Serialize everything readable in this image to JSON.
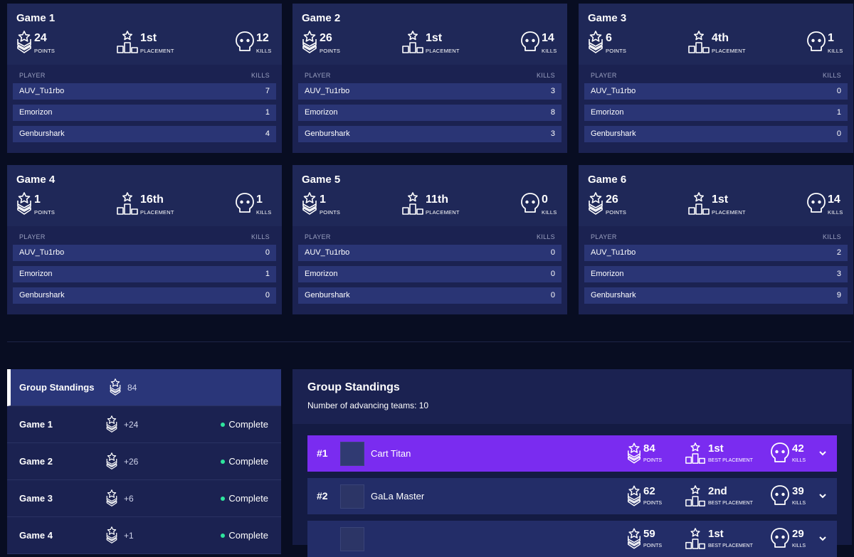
{
  "labels": {
    "points": "POINTS",
    "placement": "PLACEMENT",
    "kills": "KILLS",
    "player_col": "PLAYER",
    "kills_col": "KILLS",
    "best_placement": "BEST PLACEMENT"
  },
  "games": [
    {
      "title": "Game 1",
      "points": "24",
      "placement": "1st",
      "kills": "12",
      "players": [
        {
          "name": "AUV_Tu1rbo",
          "kills": "7"
        },
        {
          "name": "Emorizon",
          "kills": "1"
        },
        {
          "name": "Genburshark",
          "kills": "4"
        }
      ]
    },
    {
      "title": "Game 2",
      "points": "26",
      "placement": "1st",
      "kills": "14",
      "players": [
        {
          "name": "AUV_Tu1rbo",
          "kills": "3"
        },
        {
          "name": "Emorizon",
          "kills": "8"
        },
        {
          "name": "Genburshark",
          "kills": "3"
        }
      ]
    },
    {
      "title": "Game 3",
      "points": "6",
      "placement": "4th",
      "kills": "1",
      "players": [
        {
          "name": "AUV_Tu1rbo",
          "kills": "0"
        },
        {
          "name": "Emorizon",
          "kills": "1"
        },
        {
          "name": "Genburshark",
          "kills": "0"
        }
      ]
    },
    {
      "title": "Game 4",
      "points": "1",
      "placement": "16th",
      "kills": "1",
      "players": [
        {
          "name": "AUV_Tu1rbo",
          "kills": "0"
        },
        {
          "name": "Emorizon",
          "kills": "1"
        },
        {
          "name": "Genburshark",
          "kills": "0"
        }
      ]
    },
    {
      "title": "Game 5",
      "points": "1",
      "placement": "11th",
      "kills": "0",
      "players": [
        {
          "name": "AUV_Tu1rbo",
          "kills": "0"
        },
        {
          "name": "Emorizon",
          "kills": "0"
        },
        {
          "name": "Genburshark",
          "kills": "0"
        }
      ]
    },
    {
      "title": "Game 6",
      "points": "26",
      "placement": "1st",
      "kills": "14",
      "players": [
        {
          "name": "AUV_Tu1rbo",
          "kills": "2"
        },
        {
          "name": "Emorizon",
          "kills": "3"
        },
        {
          "name": "Genburshark",
          "kills": "9"
        }
      ]
    }
  ],
  "sidebar": {
    "items": [
      {
        "name": "Group Standings",
        "points": "84",
        "status": ""
      },
      {
        "name": "Game 1",
        "points": "+24",
        "status": "Complete"
      },
      {
        "name": "Game 2",
        "points": "+26",
        "status": "Complete"
      },
      {
        "name": "Game 3",
        "points": "+6",
        "status": "Complete"
      },
      {
        "name": "Game 4",
        "points": "+1",
        "status": "Complete"
      }
    ]
  },
  "standings": {
    "title": "Group Standings",
    "subtitle": "Number of advancing teams: 10",
    "teams": [
      {
        "rank": "#1",
        "name": "Cart Titan",
        "points": "84",
        "best_placement": "1st",
        "kills": "42"
      },
      {
        "rank": "#2",
        "name": "GaLa Master",
        "points": "62",
        "best_placement": "2nd",
        "kills": "39"
      },
      {
        "rank": "",
        "name": "",
        "points": "59",
        "best_placement": "1st",
        "kills": "29"
      }
    ]
  },
  "colors": {
    "background": "#080d22",
    "card": "#1b2251",
    "player_row": "#2a3575",
    "first_place_row": "#7a2cf0",
    "status_dot": "#2ee59d"
  }
}
